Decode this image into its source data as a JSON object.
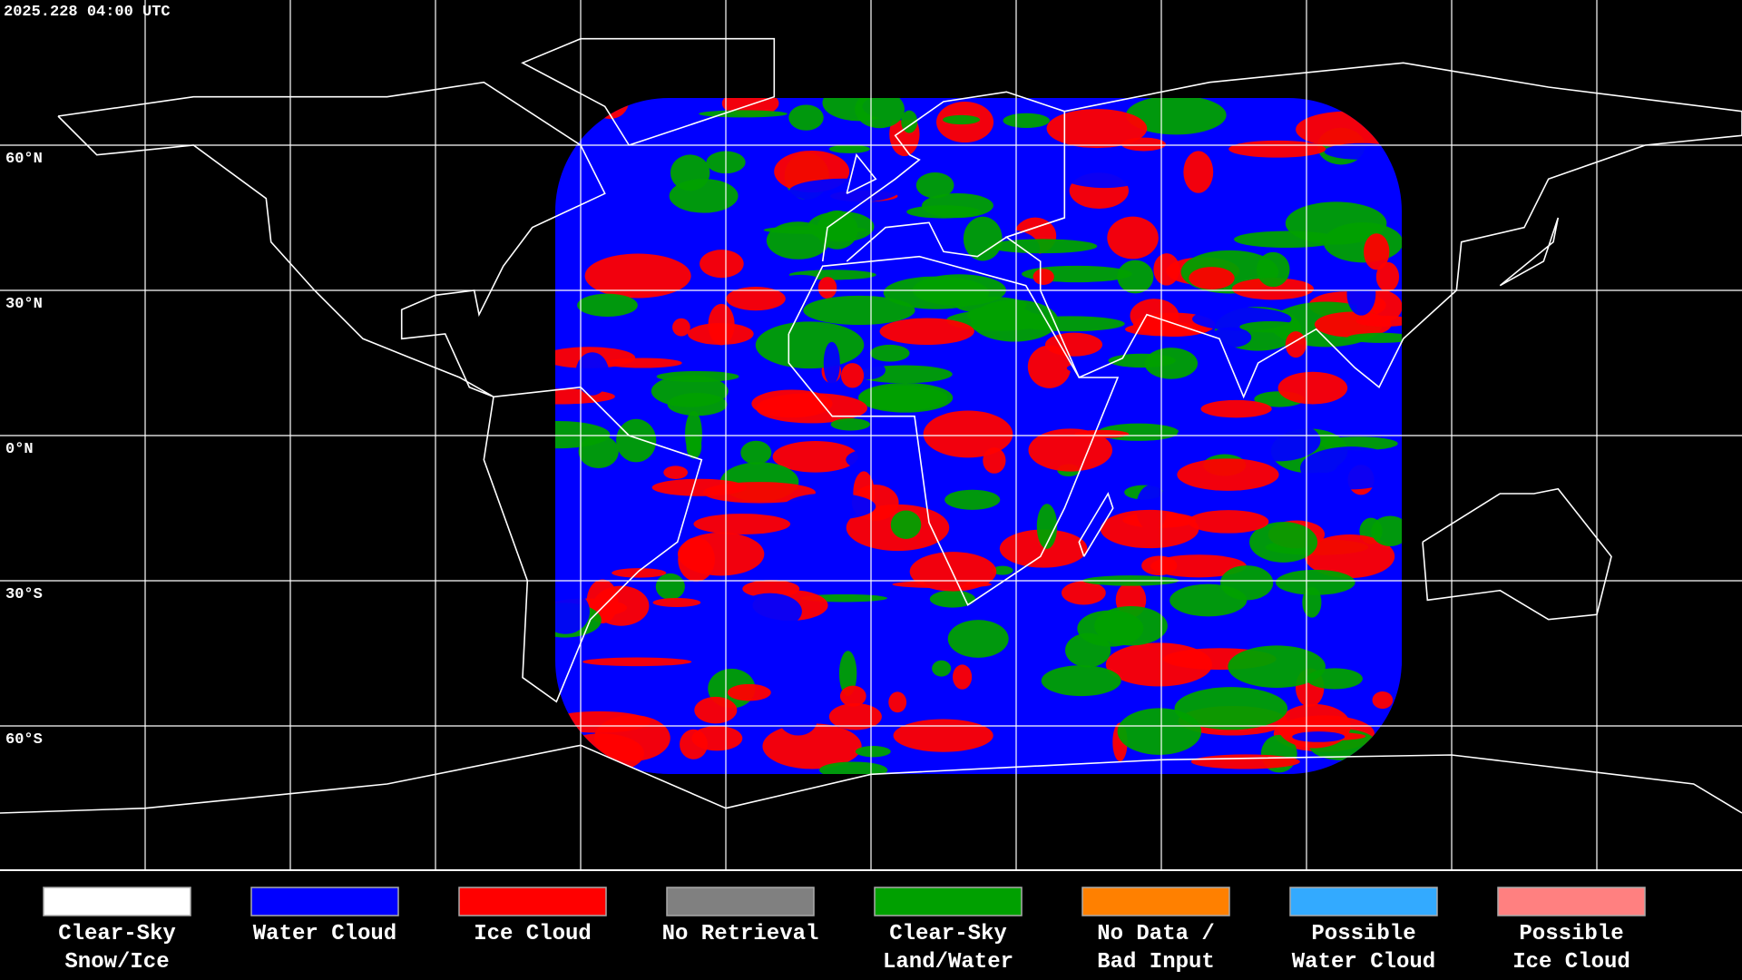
{
  "timestamp": "2025.228 04:00 UTC",
  "latitude_labels": [
    "60°N",
    "30°N",
    "0°N",
    "30°S",
    "60°S"
  ],
  "legend": [
    {
      "label": [
        "Clear-Sky",
        "Snow/Ice"
      ],
      "color": "#ffffff"
    },
    {
      "label": [
        "Water Cloud"
      ],
      "color": "#0000ff"
    },
    {
      "label": [
        "Ice Cloud"
      ],
      "color": "#ff0000"
    },
    {
      "label": [
        "No Retrieval"
      ],
      "color": "#808080"
    },
    {
      "label": [
        "Clear-Sky",
        "Land/Water"
      ],
      "color": "#00a000"
    },
    {
      "label": [
        "No Data /",
        "Bad Input"
      ],
      "color": "#ff8000"
    },
    {
      "label": [
        "Possible",
        "Water Cloud"
      ],
      "color": "#33aaff"
    },
    {
      "label": [
        "Possible",
        "Ice Cloud"
      ],
      "color": "#ff8080"
    }
  ]
}
